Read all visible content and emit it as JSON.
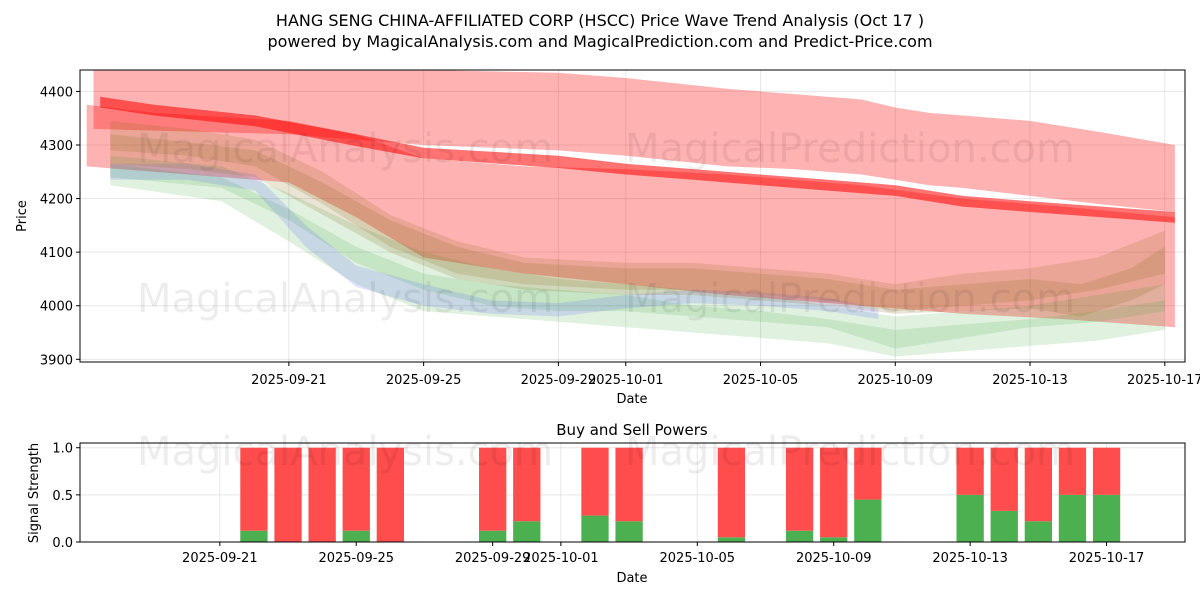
{
  "figure": {
    "title_line1": "HANG SENG CHINA-AFFILIATED CORP (HSCC) Price Wave Trend Analysis (Oct 17 )",
    "title_line2": "powered by MagicalAnalysis.com and MagicalPrediction.com and Predict-Price.com",
    "watermarks": [
      "MagicalAnalysis.com",
      "MagicalPrediction.com"
    ]
  },
  "chart_data": [
    {
      "type": "area",
      "name": "price-wave-chart",
      "title": "",
      "xlabel": "Date",
      "ylabel": "Price",
      "x_range_days": [
        -3.2,
        29.6
      ],
      "x_origin_date": "2025-09-18",
      "ylim": [
        3895,
        4440
      ],
      "grid": true,
      "xticks": [
        {
          "day": 3,
          "label": "2025-09-21"
        },
        {
          "day": 7,
          "label": "2025-09-25"
        },
        {
          "day": 11,
          "label": "2025-09-29"
        },
        {
          "day": 13,
          "label": "2025-10-01"
        },
        {
          "day": 17,
          "label": "2025-10-05"
        },
        {
          "day": 21,
          "label": "2025-10-09"
        },
        {
          "day": 25,
          "label": "2025-10-13"
        },
        {
          "day": 29,
          "label": "2025-10-17"
        }
      ],
      "yticks": [
        3900,
        4000,
        4100,
        4200,
        4300,
        4400
      ],
      "series": [
        {
          "name": "red-upper-band",
          "color": "#ff0000",
          "opacity": 0.3,
          "x": [
            -2.8,
            3,
            7,
            11,
            13,
            16,
            18,
            20,
            21,
            22,
            23,
            25,
            27,
            29.3
          ],
          "upper": [
            4440,
            4440,
            4440,
            4435,
            4425,
            4405,
            4395,
            4385,
            4370,
            4360,
            4355,
            4345,
            4325,
            4300
          ],
          "lower": [
            4330,
            4320,
            4300,
            4290,
            4280,
            4260,
            4255,
            4245,
            4235,
            4225,
            4220,
            4205,
            4190,
            4175
          ]
        },
        {
          "name": "red-lower-band",
          "color": "#ff0000",
          "opacity": 0.3,
          "x": [
            -3,
            -1,
            3,
            5,
            7,
            10,
            13,
            16,
            20,
            23,
            26,
            29.3
          ],
          "upper": [
            4375,
            4360,
            4345,
            4320,
            4275,
            4260,
            4255,
            4245,
            4225,
            4200,
            4185,
            4165
          ],
          "lower": [
            4260,
            4250,
            4230,
            4165,
            4090,
            4060,
            4040,
            4020,
            4000,
            3985,
            3975,
            3960
          ]
        },
        {
          "name": "red-main-trend",
          "color": "#ff0000",
          "opacity": 0.55,
          "x": [
            -2.6,
            -1,
            2,
            5,
            7,
            11,
            13,
            15,
            17,
            19,
            21,
            23,
            25,
            29.3
          ],
          "upper": [
            4390,
            4375,
            4355,
            4320,
            4295,
            4280,
            4265,
            4255,
            4245,
            4235,
            4225,
            4205,
            4195,
            4175
          ],
          "lower": [
            4370,
            4355,
            4335,
            4298,
            4275,
            4257,
            4245,
            4235,
            4225,
            4215,
            4205,
            4185,
            4175,
            4155
          ]
        },
        {
          "name": "green-wave-1",
          "color": "#2ca02c",
          "opacity": 0.15,
          "x": [
            -2.3,
            1,
            3,
            5,
            7,
            9,
            11,
            13,
            15,
            17,
            19,
            21,
            23,
            25,
            27,
            29
          ],
          "upper": [
            4280,
            4260,
            4210,
            4150,
            4100,
            4070,
            4050,
            4040,
            4030,
            4020,
            4000,
            3980,
            3990,
            4000,
            4020,
            4040
          ],
          "lower": [
            4240,
            4220,
            4160,
            4080,
            4030,
            4000,
            3990,
            3990,
            3980,
            3970,
            3960,
            3920,
            3940,
            3960,
            3970,
            3990
          ]
        },
        {
          "name": "green-wave-2",
          "color": "#2ca02c",
          "opacity": 0.15,
          "x": [
            -2.3,
            1,
            3,
            5,
            7,
            9,
            11,
            13,
            15,
            17,
            19,
            21,
            23,
            25,
            27,
            29
          ],
          "upper": [
            4265,
            4240,
            4180,
            4110,
            4060,
            4040,
            4030,
            4020,
            4000,
            3990,
            3975,
            3955,
            3965,
            3975,
            3990,
            4010
          ],
          "lower": [
            4225,
            4195,
            4120,
            4040,
            3990,
            3980,
            3970,
            3960,
            3950,
            3940,
            3930,
            3905,
            3915,
            3925,
            3935,
            3955
          ]
        },
        {
          "name": "blue-wave",
          "color": "#4040ff",
          "opacity": 0.15,
          "x": [
            -2.3,
            0,
            2,
            3.5,
            5,
            7,
            9,
            11,
            13,
            15,
            17,
            19,
            20.5
          ],
          "upper": [
            4265,
            4265,
            4245,
            4150,
            4075,
            4040,
            4010,
            4005,
            4020,
            4030,
            4025,
            4015,
            3995
          ],
          "lower": [
            4235,
            4235,
            4215,
            4110,
            4035,
            4000,
            3985,
            3980,
            3995,
            4005,
            4000,
            3990,
            3975
          ]
        },
        {
          "name": "brown-wave-1",
          "color": "#8b6914",
          "opacity": 0.18,
          "x": [
            -2.3,
            0,
            2,
            4,
            6,
            8,
            10,
            13,
            15,
            17,
            19,
            21,
            23,
            25,
            27,
            29
          ],
          "upper": [
            4345,
            4330,
            4310,
            4250,
            4170,
            4120,
            4090,
            4080,
            4080,
            4070,
            4060,
            4040,
            4060,
            4070,
            4090,
            4140
          ],
          "lower": [
            4290,
            4280,
            4260,
            4190,
            4110,
            4060,
            4040,
            4030,
            4030,
            4020,
            4010,
            3990,
            4000,
            4010,
            4030,
            4060
          ]
        },
        {
          "name": "brown-wave-2",
          "color": "#8b6914",
          "opacity": 0.18,
          "x": [
            -2.3,
            0,
            2,
            4,
            6,
            8,
            10,
            13,
            15,
            17,
            19,
            21,
            23,
            25,
            26.5,
            28,
            29
          ],
          "upper": [
            4320,
            4305,
            4290,
            4230,
            4160,
            4110,
            4080,
            4070,
            4070,
            4060,
            4050,
            4030,
            4040,
            4050,
            4040,
            4070,
            4110
          ],
          "lower": [
            4265,
            4255,
            4240,
            4170,
            4100,
            4050,
            4030,
            4020,
            4020,
            4010,
            4000,
            3985,
            3990,
            3995,
            3980,
            4010,
            4040
          ]
        }
      ]
    },
    {
      "type": "bar",
      "name": "buy-sell-powers",
      "title": "Buy and Sell Powers",
      "xlabel": "Date",
      "ylabel": "Signal Strength",
      "x_range_days": [
        -4.1,
        28.3
      ],
      "x_origin_date": "2025-09-21",
      "ylim": [
        0,
        1.05
      ],
      "yticks": [
        0.0,
        0.5,
        1.0
      ],
      "grid": true,
      "xticks": [
        {
          "day": 0,
          "label": "2025-09-21"
        },
        {
          "day": 4,
          "label": "2025-09-25"
        },
        {
          "day": 8,
          "label": "2025-09-29"
        },
        {
          "day": 10,
          "label": "2025-10-01"
        },
        {
          "day": 14,
          "label": "2025-10-05"
        },
        {
          "day": 18,
          "label": "2025-10-09"
        },
        {
          "day": 22,
          "label": "2025-10-13"
        },
        {
          "day": 26,
          "label": "2025-10-17"
        }
      ],
      "bar_width_days": 0.8,
      "series": [
        {
          "name": "Buy",
          "color": "#4caf50"
        },
        {
          "name": "Sell",
          "color": "#ff4c4c"
        }
      ],
      "days": [
        1,
        2,
        3,
        4,
        5,
        8,
        9,
        11,
        12,
        15,
        17,
        18,
        19,
        22,
        23,
        24,
        25,
        26
      ],
      "buy": [
        0.12,
        0.0,
        0.0,
        0.12,
        0.0,
        0.12,
        0.22,
        0.28,
        0.22,
        0.05,
        0.12,
        0.05,
        0.45,
        0.5,
        0.33,
        0.22,
        0.5,
        0.5
      ],
      "sell": [
        0.88,
        1.0,
        1.0,
        0.88,
        1.0,
        0.88,
        0.78,
        0.72,
        0.78,
        0.95,
        0.88,
        0.95,
        0.55,
        0.5,
        0.67,
        0.78,
        0.5,
        0.5
      ]
    }
  ]
}
